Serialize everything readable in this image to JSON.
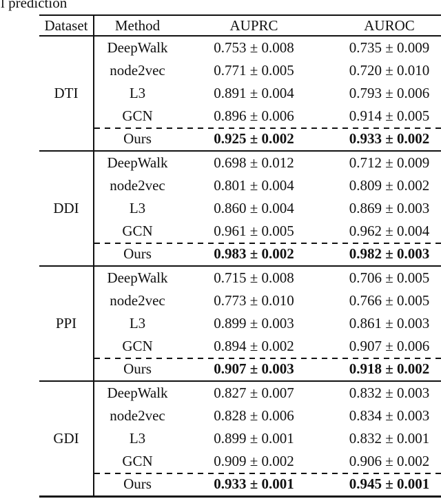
{
  "caption_fragment": "l prediction",
  "table": {
    "headers": {
      "dataset": "Dataset",
      "method": "Method",
      "auprc": "AUPRC",
      "auroc": "AUROC"
    },
    "groups": [
      {
        "dataset": "DTI",
        "rows": [
          {
            "method": "DeepWalk",
            "auprc": "0.753 ± 0.008",
            "auroc": "0.735 ± 0.009",
            "highlight": false
          },
          {
            "method": "node2vec",
            "auprc": "0.771 ± 0.005",
            "auroc": "0.720 ± 0.010",
            "highlight": false
          },
          {
            "method": "L3",
            "auprc": "0.891 ± 0.004",
            "auroc": "0.793 ± 0.006",
            "highlight": false
          },
          {
            "method": "GCN",
            "auprc": "0.896 ± 0.006",
            "auroc": "0.914 ± 0.005",
            "highlight": false
          },
          {
            "method": "Ours",
            "auprc": "0.925 ± 0.002",
            "auroc": "0.933 ± 0.002",
            "highlight": true
          }
        ]
      },
      {
        "dataset": "DDI",
        "rows": [
          {
            "method": "DeepWalk",
            "auprc": "0.698 ± 0.012",
            "auroc": "0.712 ± 0.009",
            "highlight": false
          },
          {
            "method": "node2vec",
            "auprc": "0.801 ± 0.004",
            "auroc": "0.809 ± 0.002",
            "highlight": false
          },
          {
            "method": "L3",
            "auprc": "0.860 ± 0.004",
            "auroc": "0.869 ± 0.003",
            "highlight": false
          },
          {
            "method": "GCN",
            "auprc": "0.961 ± 0.005",
            "auroc": "0.962 ± 0.004",
            "highlight": false
          },
          {
            "method": "Ours",
            "auprc": "0.983 ± 0.002",
            "auroc": "0.982 ± 0.003",
            "highlight": true
          }
        ]
      },
      {
        "dataset": "PPI",
        "rows": [
          {
            "method": "DeepWalk",
            "auprc": "0.715 ± 0.008",
            "auroc": "0.706 ± 0.005",
            "highlight": false
          },
          {
            "method": "node2vec",
            "auprc": "0.773 ± 0.010",
            "auroc": "0.766 ± 0.005",
            "highlight": false
          },
          {
            "method": "L3",
            "auprc": "0.899 ± 0.003",
            "auroc": "0.861 ± 0.003",
            "highlight": false
          },
          {
            "method": "GCN",
            "auprc": "0.894 ± 0.002",
            "auroc": "0.907 ± 0.006",
            "highlight": false
          },
          {
            "method": "Ours",
            "auprc": "0.907 ± 0.003",
            "auroc": "0.918 ± 0.002",
            "highlight": true
          }
        ]
      },
      {
        "dataset": "GDI",
        "rows": [
          {
            "method": "DeepWalk",
            "auprc": "0.827 ± 0.007",
            "auroc": "0.832 ± 0.003",
            "highlight": false
          },
          {
            "method": "node2vec",
            "auprc": "0.828 ± 0.006",
            "auroc": "0.834 ± 0.003",
            "highlight": false
          },
          {
            "method": "L3",
            "auprc": "0.899 ± 0.001",
            "auroc": "0.832 ± 0.001",
            "highlight": false
          },
          {
            "method": "GCN",
            "auprc": "0.909 ± 0.002",
            "auroc": "0.906 ± 0.002",
            "highlight": false
          },
          {
            "method": "Ours",
            "auprc": "0.933 ± 0.001",
            "auroc": "0.945 ± 0.001",
            "highlight": true
          }
        ]
      }
    ]
  }
}
